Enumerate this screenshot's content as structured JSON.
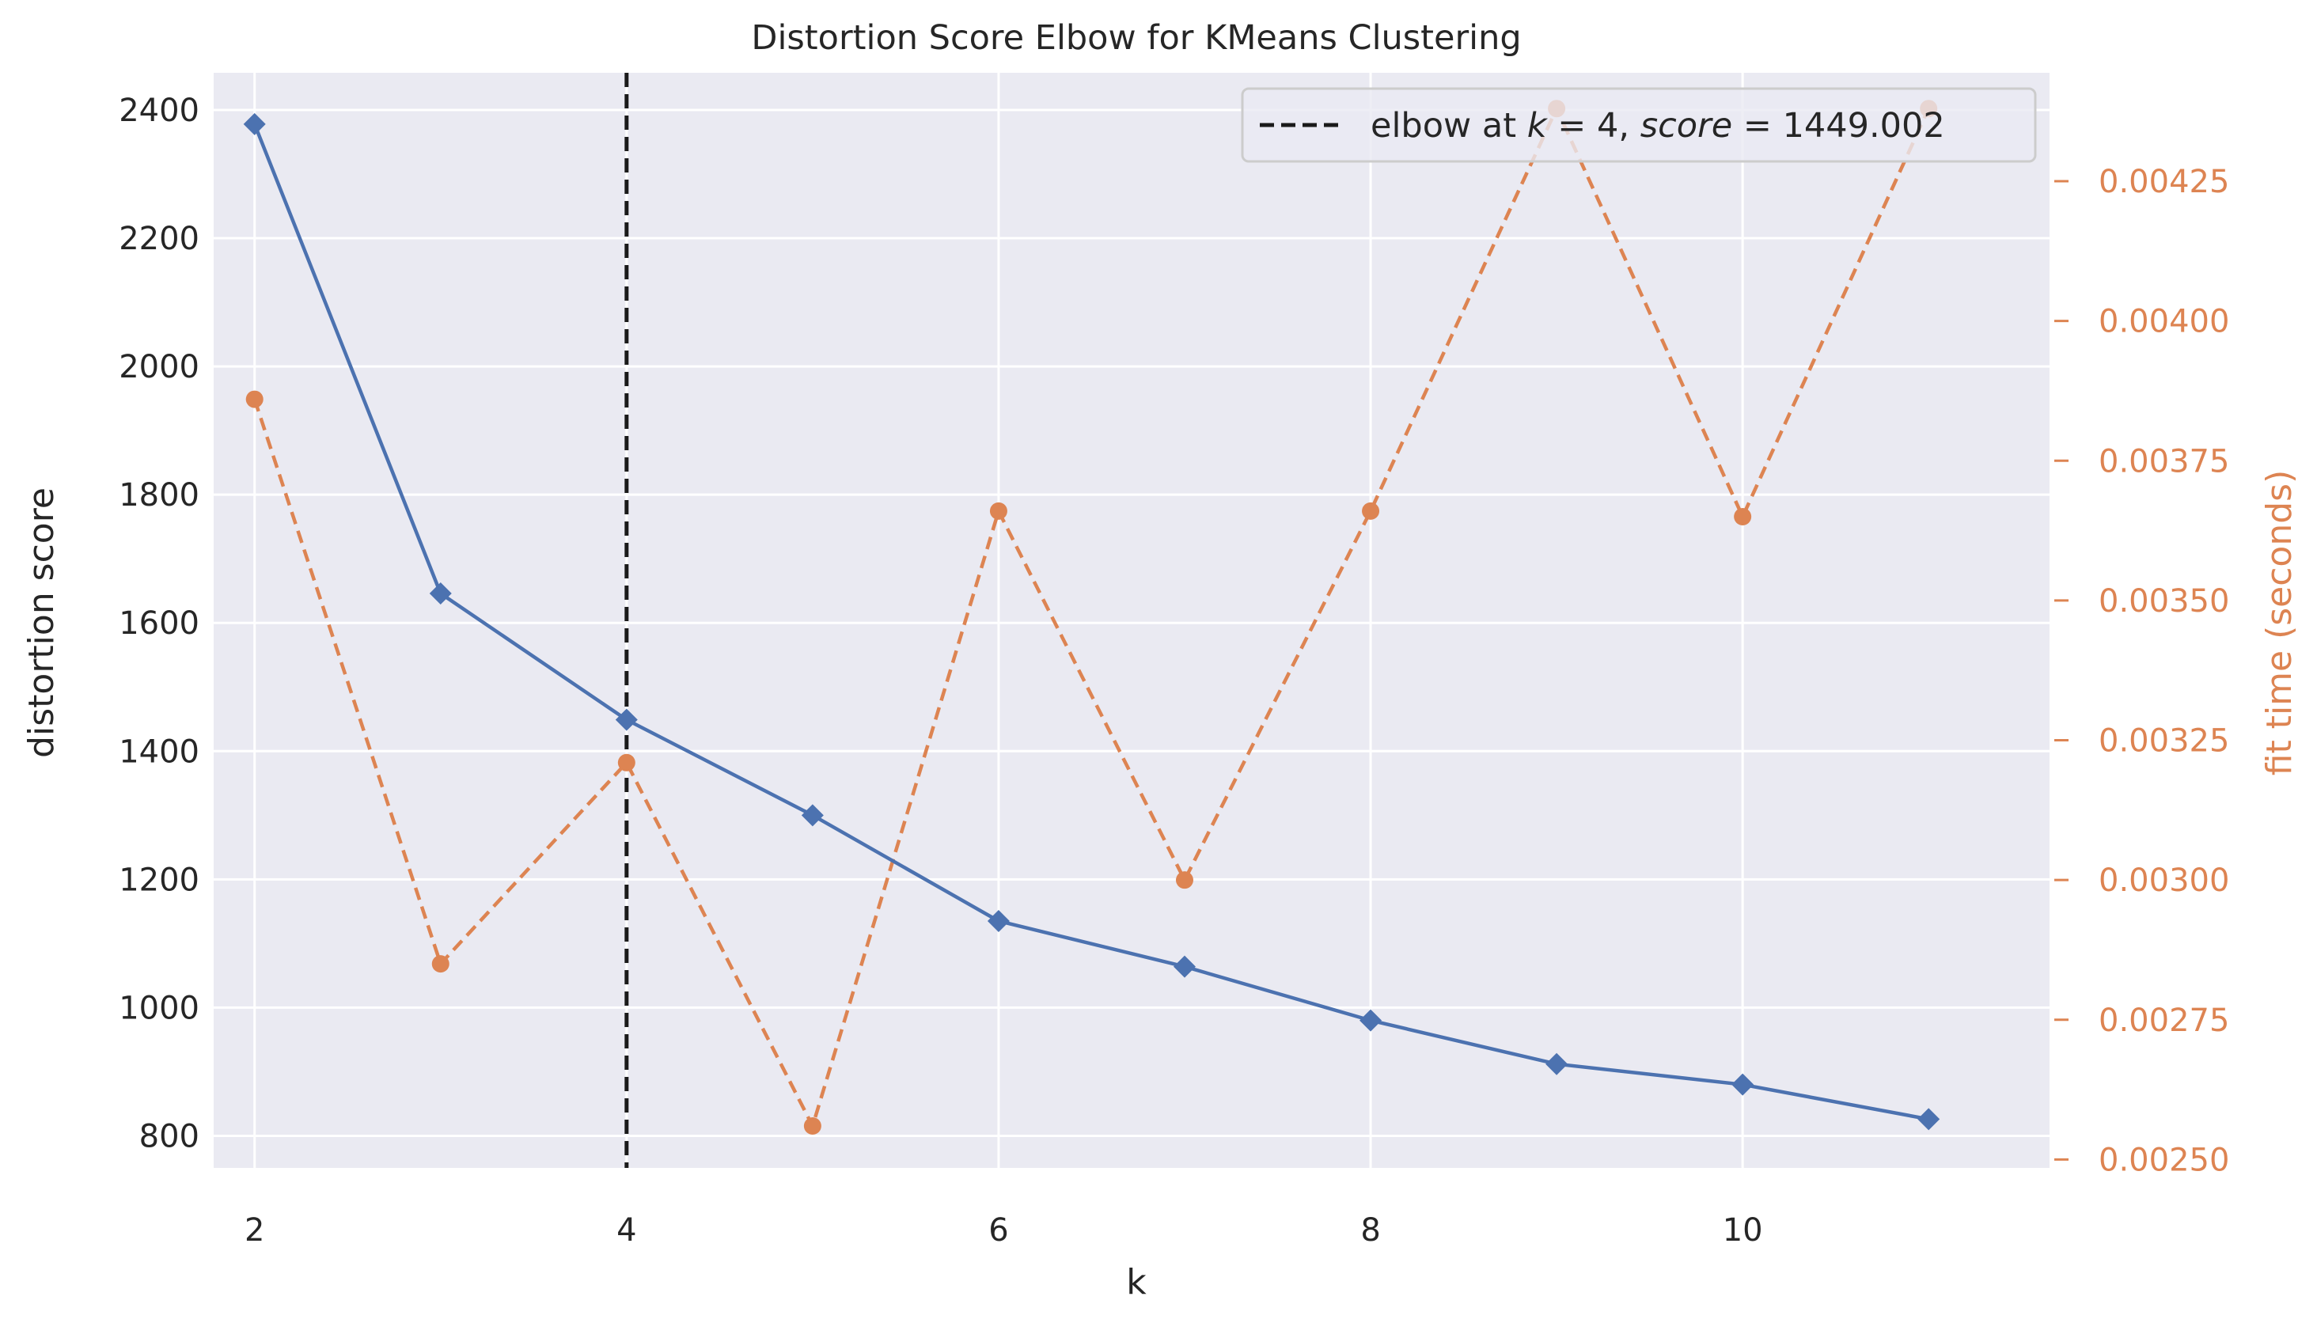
{
  "chart_data": {
    "type": "line",
    "title": "Distortion Score Elbow for KMeans Clustering",
    "xlabel": "k",
    "ylabel": "distortion score",
    "y2label": "fit time (seconds)",
    "xlim": [
      1.78,
      11.65
    ],
    "ylim": [
      750,
      2458
    ],
    "y2lim": [
      0.002485,
      0.004444
    ],
    "x_ticks": [
      2,
      4,
      6,
      8,
      10
    ],
    "y_ticks": [
      800,
      1000,
      1200,
      1400,
      1600,
      1800,
      2000,
      2200,
      2400
    ],
    "y2_ticks": [
      "0.00250",
      "0.00275",
      "0.00300",
      "0.00325",
      "0.00350",
      "0.00375",
      "0.00400",
      "0.00425"
    ],
    "grid": true,
    "legend_position": "top-right",
    "elbow": {
      "k": 4,
      "score": 1449.002,
      "legend_prefix": "elbow at ",
      "legend_k": "k",
      "legend_eq1": " = 4, ",
      "legend_score": "score",
      "legend_eq2": " = 1449.002"
    },
    "x": [
      2,
      3,
      4,
      5,
      6,
      7,
      8,
      9,
      10,
      11
    ],
    "series": [
      {
        "axis": "left",
        "color": "#4c72b0",
        "marker": "diamond",
        "style": "solid",
        "values": [
          2378,
          1646,
          1449,
          1300,
          1135,
          1064,
          980,
          912,
          880,
          826
        ]
      },
      {
        "axis": "right",
        "color": "#dd8452",
        "marker": "circle",
        "style": "dashed",
        "values": [
          0.00386,
          0.00285,
          0.00321,
          0.00256,
          0.00366,
          0.003,
          0.00366,
          0.00438,
          0.00365,
          0.00438
        ]
      }
    ],
    "colors": {
      "plot_bg": "#eaeaf2",
      "grid": "#ffffff",
      "text": "#262626",
      "right_axis": "#dd8452",
      "elbow_line": "#1a1a1a"
    }
  }
}
